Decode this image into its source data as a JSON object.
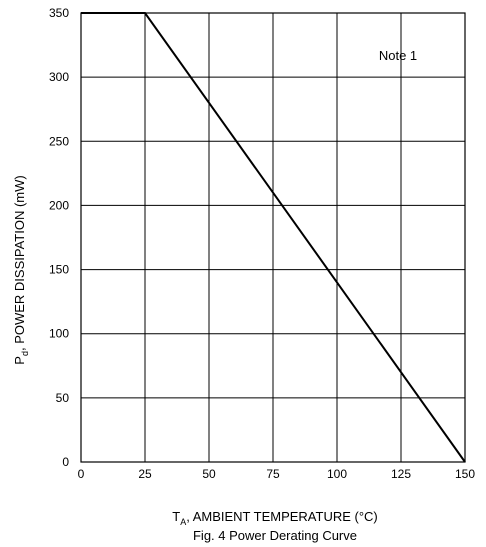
{
  "chart_data": {
    "type": "line",
    "ylabel_main": "P",
    "ylabel_sub": "d",
    "ylabel_rest": ", POWER DISSIPATION (mW)",
    "xlabel_main": "T",
    "xlabel_sub": "A",
    "xlabel_rest": ", AMBIENT TEMPERATURE (°C)",
    "caption": "Fig. 4  Power Derating Curve",
    "annotation": "Note 1",
    "xlim": [
      0,
      150
    ],
    "ylim": [
      0,
      350
    ],
    "xticks": [
      "0",
      "25",
      "50",
      "75",
      "100",
      "125",
      "150"
    ],
    "yticks": [
      "0",
      "50",
      "100",
      "150",
      "200",
      "250",
      "300",
      "350"
    ],
    "grid": true,
    "series": [
      {
        "x": [
          0,
          25,
          150
        ],
        "y": [
          350,
          350,
          0
        ]
      }
    ]
  }
}
